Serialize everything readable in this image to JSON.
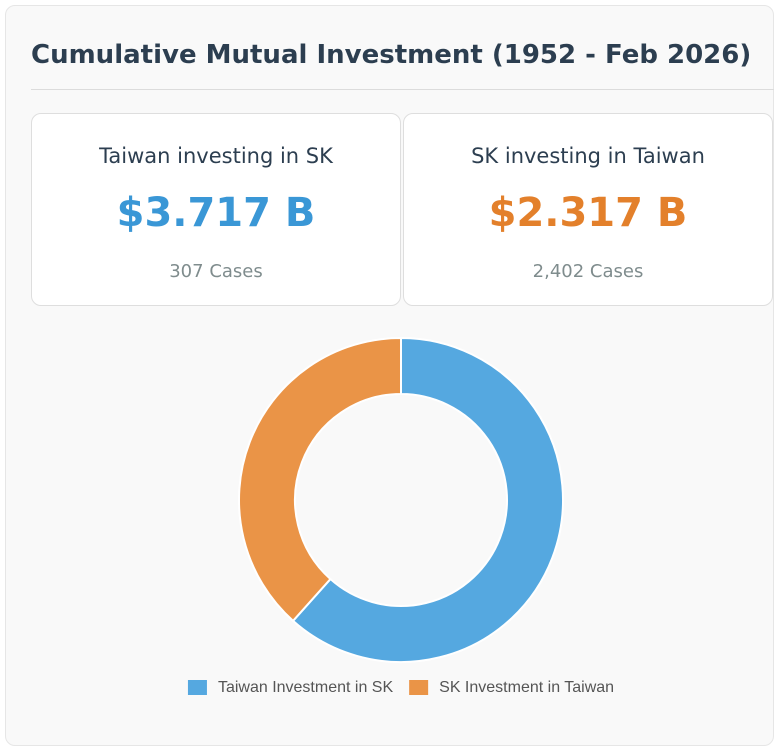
{
  "header": {
    "title": "Cumulative Mutual Investment (1952 - Feb 2026)"
  },
  "cards": [
    {
      "title": "Taiwan investing in SK",
      "value": "$3.717 B",
      "cases": "307 Cases",
      "color": "#3a97d6"
    },
    {
      "title": "SK investing in Taiwan",
      "value": "$2.317 B",
      "cases": "2,402 Cases",
      "color": "#e3802b"
    }
  ],
  "chart_data": {
    "type": "doughnut",
    "categories": [
      "Taiwan Investment in SK",
      "SK Investment in Taiwan"
    ],
    "values": [
      3.717,
      2.317
    ],
    "colors": [
      "#55a8e0",
      "#ea9447"
    ],
    "legend": "bottom"
  }
}
